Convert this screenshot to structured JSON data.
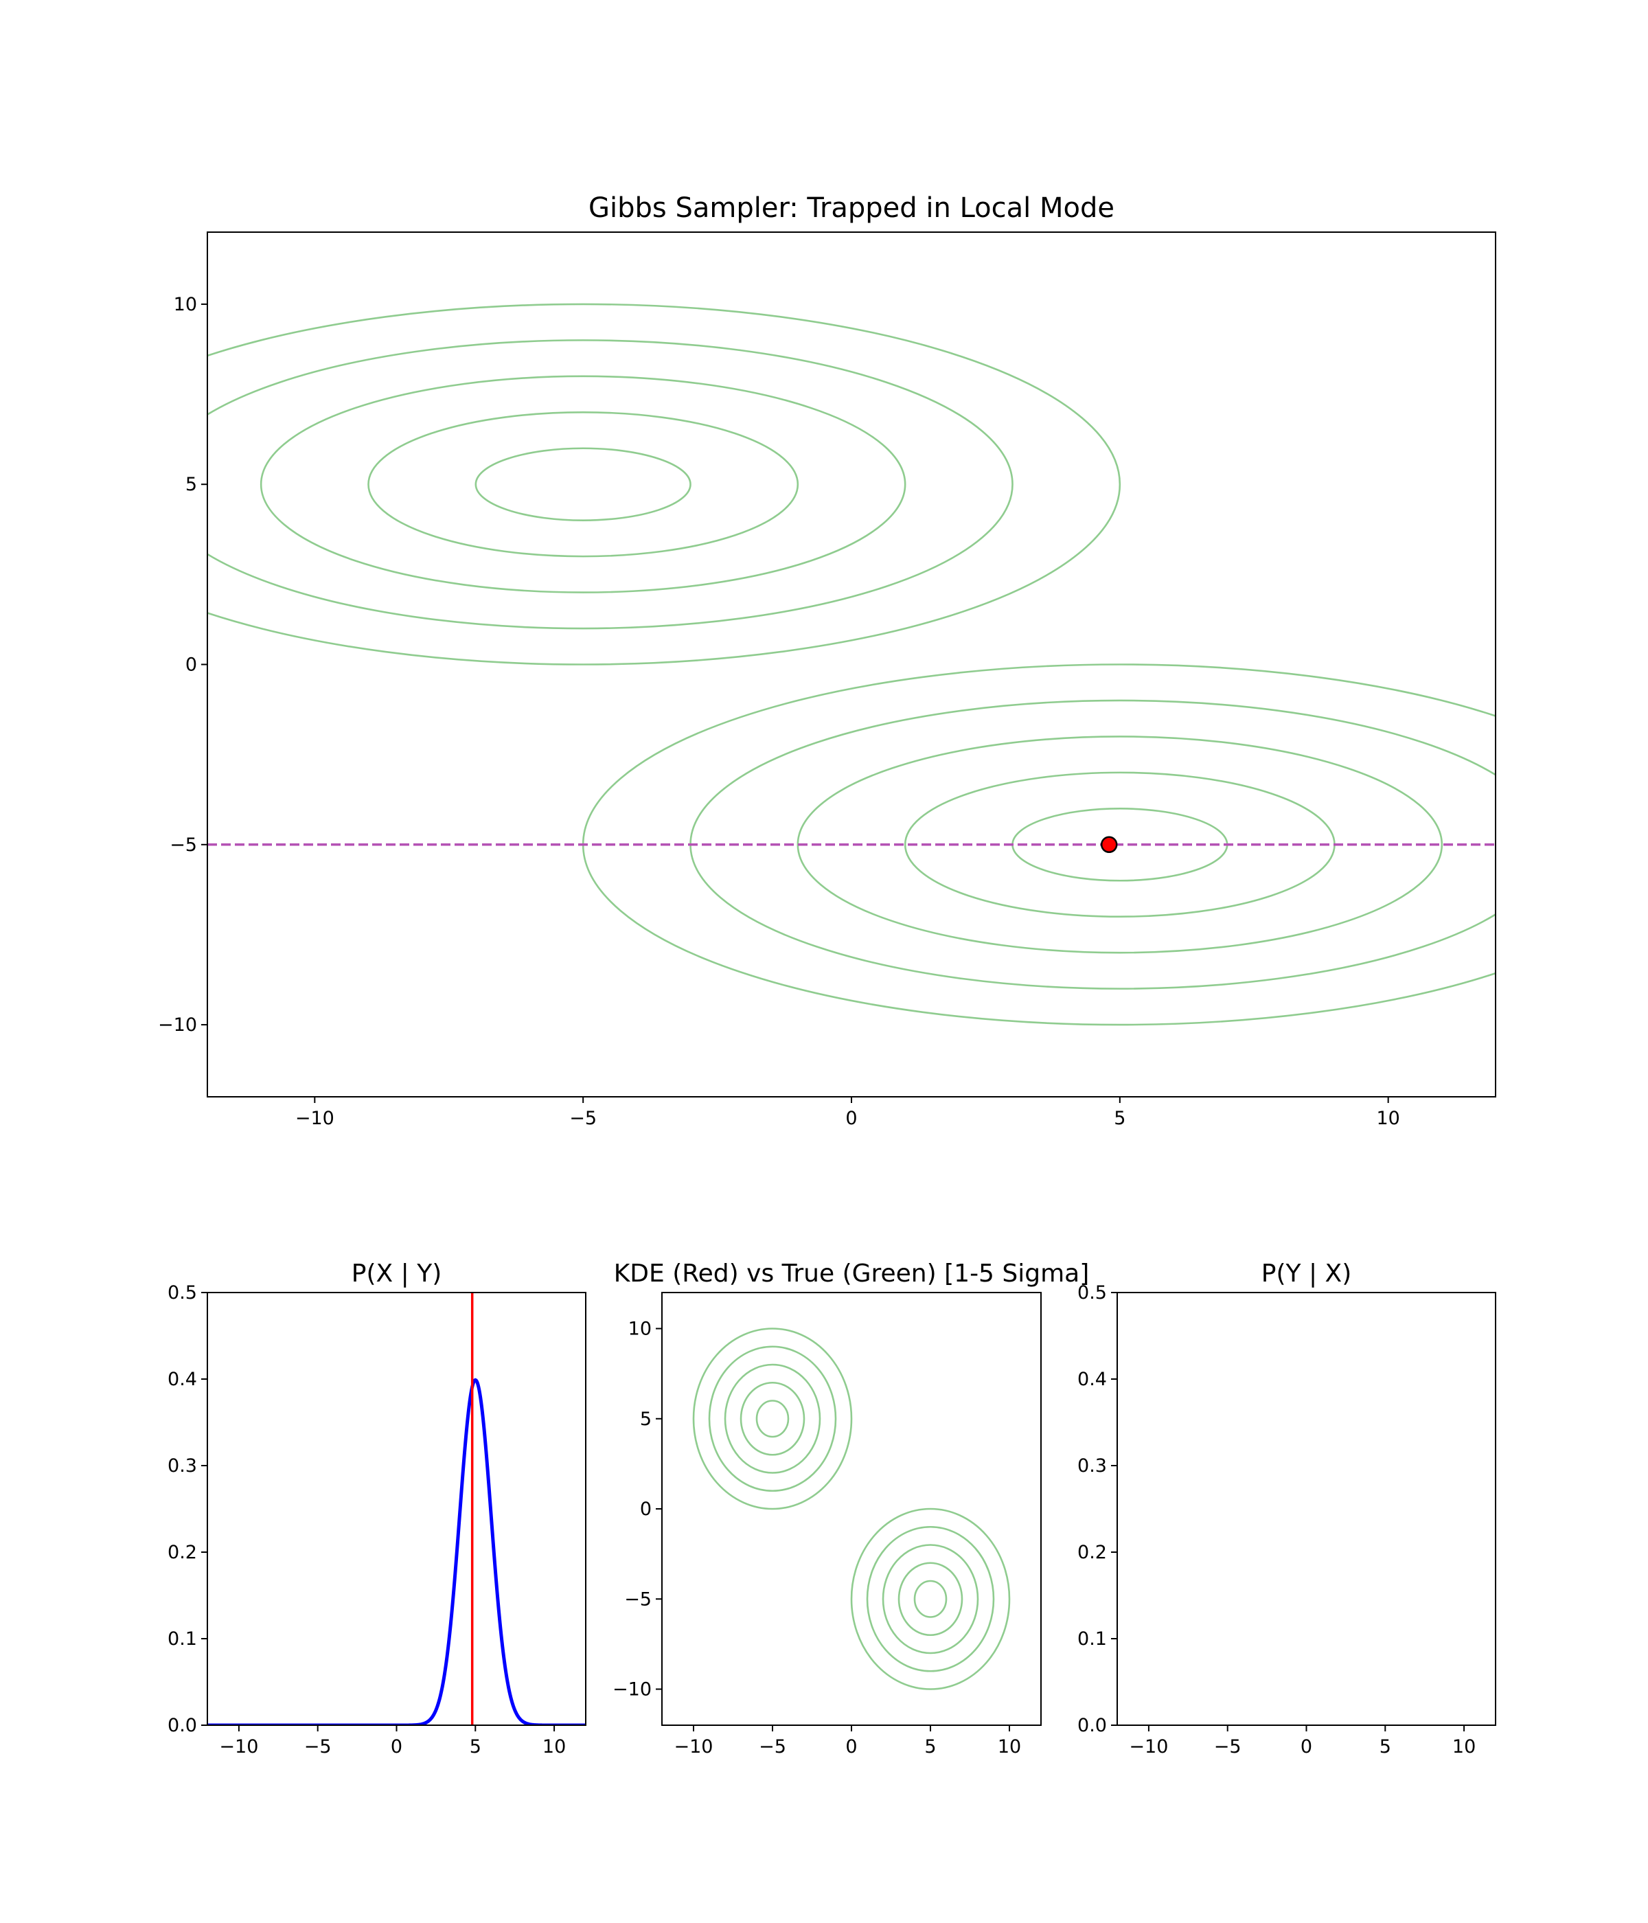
{
  "chart_data": [
    {
      "type": "contour",
      "title": "Gibbs Sampler: Trapped in Local Mode",
      "xlim": [
        -12,
        12
      ],
      "ylim": [
        -12,
        12
      ],
      "xticks": [
        -10,
        -5,
        0,
        5,
        10
      ],
      "yticks": [
        -10,
        -5,
        0,
        5,
        10
      ],
      "grid": false,
      "modes": [
        {
          "center": [
            -5,
            5
          ],
          "sigma_x": 2,
          "sigma_y": 1,
          "levels": [
            1,
            2,
            3,
            4,
            5
          ]
        },
        {
          "center": [
            5,
            -5
          ],
          "sigma_x": 2,
          "sigma_y": 1,
          "levels": [
            1,
            2,
            3,
            4,
            5
          ]
        }
      ],
      "contour_color": "#8fcc8f",
      "current_point": {
        "x": 4.8,
        "y": -5,
        "color": "#ff0000"
      },
      "conditioning_line": {
        "orientation": "horizontal",
        "y": -5,
        "style": "dashed",
        "color": "#b452b4"
      }
    },
    {
      "type": "line",
      "title": "P(X | Y)",
      "xlim": [
        -12,
        12
      ],
      "ylim": [
        0,
        0.5
      ],
      "xticks": [
        -10,
        -5,
        0,
        5,
        10
      ],
      "yticks": [
        "0.0",
        "0.1",
        "0.2",
        "0.3",
        "0.4",
        "0.5"
      ],
      "series": [
        {
          "distribution": "normal",
          "mean": 5,
          "sd": 1,
          "color": "#0000ff"
        }
      ],
      "current_value_line": {
        "x": 4.8,
        "color": "#ff0000"
      }
    },
    {
      "type": "contour",
      "title": "KDE (Red) vs True (Green) [1-5 Sigma]",
      "xlim": [
        -12,
        12
      ],
      "ylim": [
        -12,
        12
      ],
      "xticks": [
        -10,
        -5,
        0,
        5,
        10
      ],
      "yticks": [
        -10,
        -5,
        0,
        5,
        10
      ],
      "modes": [
        {
          "center": [
            -5,
            5
          ],
          "sigma_x": 1,
          "sigma_y": 1,
          "levels": [
            1,
            2,
            3,
            4,
            5
          ]
        },
        {
          "center": [
            5,
            -5
          ],
          "sigma_x": 1,
          "sigma_y": 1,
          "levels": [
            1,
            2,
            3,
            4,
            5
          ]
        }
      ],
      "contour_color": "#8fcc8f"
    },
    {
      "type": "line",
      "title": "P(Y | X)",
      "xlim": [
        -12,
        12
      ],
      "ylim": [
        0,
        0.5
      ],
      "xticks": [
        -10,
        -5,
        0,
        5,
        10
      ],
      "yticks": [
        "0.0",
        "0.1",
        "0.2",
        "0.3",
        "0.4",
        "0.5"
      ],
      "series": []
    }
  ]
}
